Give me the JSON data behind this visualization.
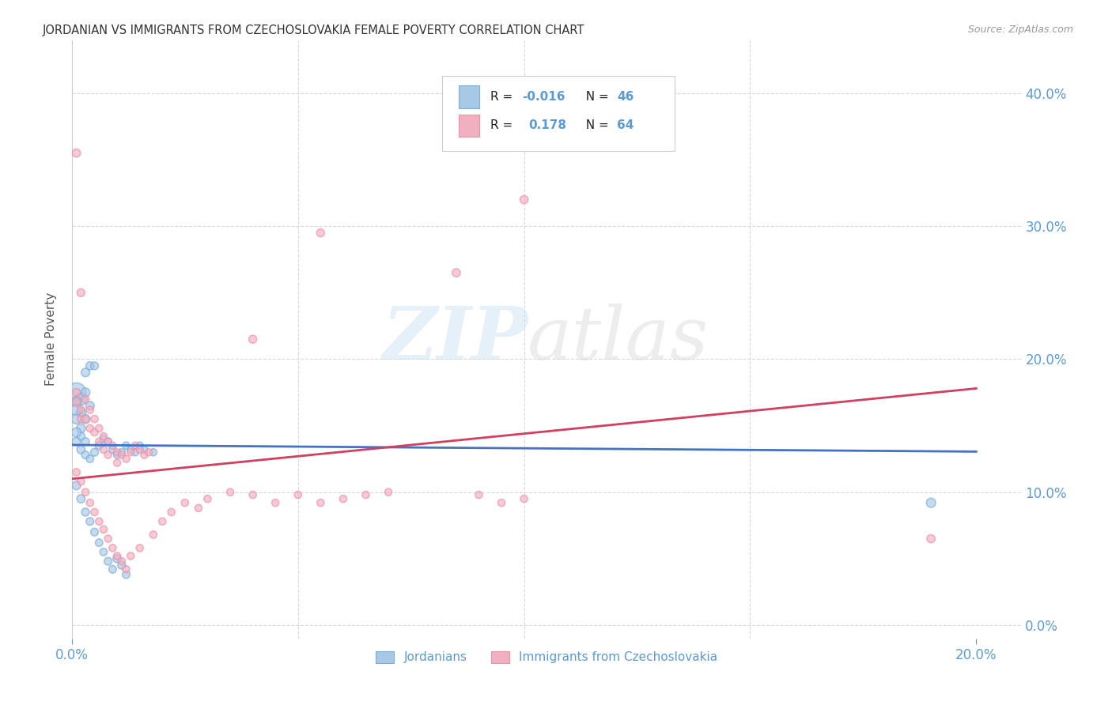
{
  "title": "JORDANIAN VS IMMIGRANTS FROM CZECHOSLOVAKIA FEMALE POVERTY CORRELATION CHART",
  "source": "Source: ZipAtlas.com",
  "ylabel": "Female Poverty",
  "xlim": [
    0.0,
    0.21
  ],
  "ylim": [
    -0.01,
    0.44
  ],
  "xtick_positions": [
    0.0,
    0.2
  ],
  "xtick_labels": [
    "0.0%",
    "20.0%"
  ],
  "ytick_positions": [
    0.0,
    0.1,
    0.2,
    0.3,
    0.4
  ],
  "ytick_labels_right": [
    "0.0%",
    "10.0%",
    "20.0%",
    "30.0%",
    "40.0%"
  ],
  "legend_labels": [
    "Jordanians",
    "Immigrants from Czechoslovakia"
  ],
  "blue_R_text": "-0.016",
  "blue_N": 46,
  "pink_R_text": "0.178",
  "pink_N": 64,
  "blue_fill": "#a8c8e8",
  "pink_fill": "#f0b0c0",
  "blue_edge": "#7bafd4",
  "pink_edge": "#f090a8",
  "blue_line_color": "#4472c4",
  "pink_line_color": "#d04060",
  "axis_color": "#5b9bd5",
  "title_color": "#333333",
  "grid_color": "#d8d8d8",
  "blue_trend": [
    0.0,
    0.1355,
    0.2,
    0.1305
  ],
  "pink_trend": [
    0.0,
    0.11,
    0.2,
    0.178
  ],
  "blue_points": [
    [
      0.001,
      0.175,
      300
    ],
    [
      0.002,
      0.17,
      120
    ],
    [
      0.002,
      0.16,
      80
    ],
    [
      0.003,
      0.155,
      70
    ],
    [
      0.004,
      0.165,
      60
    ],
    [
      0.003,
      0.175,
      65
    ],
    [
      0.001,
      0.168,
      90
    ],
    [
      0.001,
      0.162,
      110
    ],
    [
      0.001,
      0.155,
      80
    ],
    [
      0.002,
      0.148,
      65
    ],
    [
      0.002,
      0.142,
      55
    ],
    [
      0.003,
      0.138,
      50
    ],
    [
      0.004,
      0.195,
      55
    ],
    [
      0.005,
      0.195,
      50
    ],
    [
      0.003,
      0.19,
      60
    ],
    [
      0.001,
      0.145,
      70
    ],
    [
      0.001,
      0.138,
      60
    ],
    [
      0.002,
      0.132,
      55
    ],
    [
      0.003,
      0.128,
      50
    ],
    [
      0.004,
      0.125,
      45
    ],
    [
      0.005,
      0.13,
      50
    ],
    [
      0.006,
      0.135,
      50
    ],
    [
      0.007,
      0.14,
      48
    ],
    [
      0.008,
      0.138,
      45
    ],
    [
      0.009,
      0.132,
      44
    ],
    [
      0.01,
      0.128,
      44
    ],
    [
      0.011,
      0.13,
      44
    ],
    [
      0.012,
      0.135,
      44
    ],
    [
      0.013,
      0.132,
      43
    ],
    [
      0.014,
      0.13,
      43
    ],
    [
      0.015,
      0.135,
      43
    ],
    [
      0.016,
      0.132,
      42
    ],
    [
      0.018,
      0.13,
      42
    ],
    [
      0.001,
      0.105,
      60
    ],
    [
      0.002,
      0.095,
      55
    ],
    [
      0.003,
      0.085,
      52
    ],
    [
      0.004,
      0.078,
      50
    ],
    [
      0.005,
      0.07,
      48
    ],
    [
      0.006,
      0.062,
      46
    ],
    [
      0.007,
      0.055,
      46
    ],
    [
      0.008,
      0.048,
      50
    ],
    [
      0.009,
      0.042,
      48
    ],
    [
      0.01,
      0.05,
      55
    ],
    [
      0.011,
      0.045,
      50
    ],
    [
      0.012,
      0.038,
      48
    ],
    [
      0.19,
      0.092,
      70
    ]
  ],
  "pink_points": [
    [
      0.001,
      0.355,
      55
    ],
    [
      0.002,
      0.25,
      52
    ],
    [
      0.001,
      0.175,
      50
    ],
    [
      0.001,
      0.168,
      48
    ],
    [
      0.002,
      0.162,
      46
    ],
    [
      0.002,
      0.155,
      46
    ],
    [
      0.003,
      0.17,
      46
    ],
    [
      0.003,
      0.155,
      45
    ],
    [
      0.004,
      0.148,
      45
    ],
    [
      0.004,
      0.162,
      45
    ],
    [
      0.005,
      0.145,
      44
    ],
    [
      0.005,
      0.155,
      44
    ],
    [
      0.006,
      0.148,
      44
    ],
    [
      0.006,
      0.138,
      43
    ],
    [
      0.007,
      0.142,
      43
    ],
    [
      0.007,
      0.132,
      43
    ],
    [
      0.008,
      0.138,
      42
    ],
    [
      0.008,
      0.128,
      42
    ],
    [
      0.009,
      0.135,
      42
    ],
    [
      0.01,
      0.13,
      42
    ],
    [
      0.01,
      0.122,
      42
    ],
    [
      0.011,
      0.128,
      42
    ],
    [
      0.012,
      0.125,
      42
    ],
    [
      0.013,
      0.13,
      42
    ],
    [
      0.014,
      0.135,
      42
    ],
    [
      0.015,
      0.132,
      42
    ],
    [
      0.016,
      0.128,
      42
    ],
    [
      0.017,
      0.13,
      42
    ],
    [
      0.001,
      0.115,
      45
    ],
    [
      0.002,
      0.108,
      44
    ],
    [
      0.003,
      0.1,
      44
    ],
    [
      0.004,
      0.092,
      43
    ],
    [
      0.005,
      0.085,
      43
    ],
    [
      0.006,
      0.078,
      43
    ],
    [
      0.007,
      0.072,
      43
    ],
    [
      0.008,
      0.065,
      43
    ],
    [
      0.009,
      0.058,
      43
    ],
    [
      0.01,
      0.052,
      43
    ],
    [
      0.011,
      0.048,
      43
    ],
    [
      0.012,
      0.042,
      43
    ],
    [
      0.013,
      0.052,
      43
    ],
    [
      0.015,
      0.058,
      43
    ],
    [
      0.018,
      0.068,
      43
    ],
    [
      0.02,
      0.078,
      43
    ],
    [
      0.022,
      0.085,
      43
    ],
    [
      0.025,
      0.092,
      43
    ],
    [
      0.028,
      0.088,
      43
    ],
    [
      0.03,
      0.095,
      43
    ],
    [
      0.035,
      0.1,
      43
    ],
    [
      0.04,
      0.098,
      43
    ],
    [
      0.045,
      0.092,
      43
    ],
    [
      0.05,
      0.098,
      43
    ],
    [
      0.055,
      0.092,
      43
    ],
    [
      0.06,
      0.095,
      43
    ],
    [
      0.065,
      0.098,
      43
    ],
    [
      0.07,
      0.1,
      43
    ],
    [
      0.1,
      0.32,
      55
    ],
    [
      0.085,
      0.265,
      55
    ],
    [
      0.04,
      0.215,
      52
    ],
    [
      0.055,
      0.295,
      52
    ],
    [
      0.19,
      0.065,
      55
    ],
    [
      0.09,
      0.098,
      43
    ],
    [
      0.095,
      0.092,
      43
    ],
    [
      0.1,
      0.095,
      43
    ]
  ]
}
